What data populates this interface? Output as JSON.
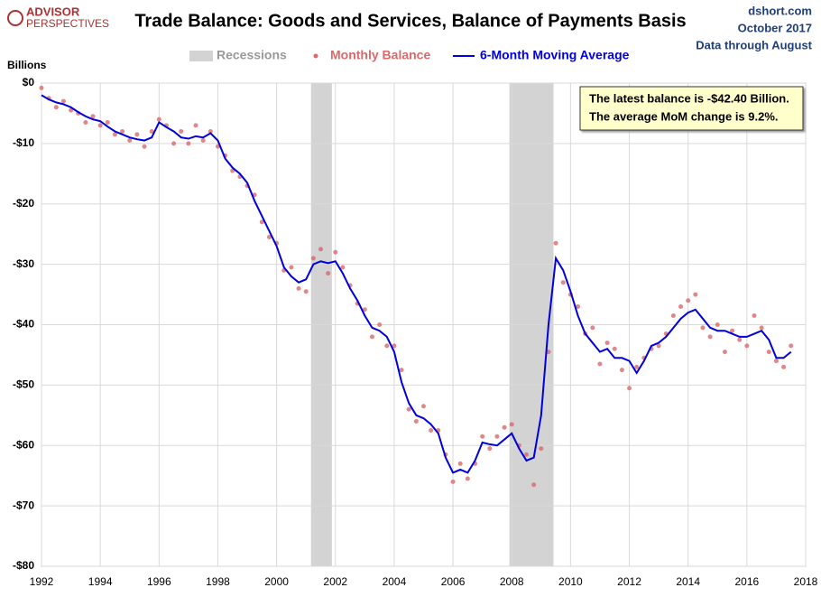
{
  "logo": [
    "ADVISOR",
    "PERSPECTIVES"
  ],
  "source": [
    "dshort.com",
    "October 2017",
    "Data through August"
  ],
  "chart_data": {
    "type": "line",
    "title": "Trade Balance: Goods and Services, Balance of Payments Basis",
    "y_label": "Billions",
    "recession_label": "Recessions",
    "recession_color": "#d3d3d3",
    "recessions": [
      [
        2001.17,
        2001.88
      ],
      [
        2007.92,
        2009.42
      ]
    ],
    "annotation": [
      "The latest balance is -$42.40  Billion.",
      "The average MoM change is 9.2%."
    ],
    "grid": true,
    "xlim": [
      1992,
      2018
    ],
    "xticks": [
      1992,
      1994,
      1996,
      1998,
      2000,
      2002,
      2004,
      2006,
      2008,
      2010,
      2012,
      2014,
      2016,
      2018
    ],
    "ylim": [
      -80,
      0
    ],
    "yticks": [
      {
        "value": 0,
        "label": "$0"
      },
      {
        "value": -10,
        "label": "-$10"
      },
      {
        "value": -20,
        "label": "-$20"
      },
      {
        "value": -30,
        "label": "-$30"
      },
      {
        "value": -40,
        "label": "-$40"
      },
      {
        "value": -50,
        "label": "-$50"
      },
      {
        "value": -60,
        "label": "-$60"
      },
      {
        "value": -70,
        "label": "-$70"
      },
      {
        "value": -80,
        "label": "-$80"
      }
    ],
    "x": [
      1992,
      1992.25,
      1992.5,
      1992.75,
      1993,
      1993.25,
      1993.5,
      1993.75,
      1994,
      1994.25,
      1994.5,
      1994.75,
      1995,
      1995.25,
      1995.5,
      1995.75,
      1996,
      1996.25,
      1996.5,
      1996.75,
      1997,
      1997.25,
      1997.5,
      1997.75,
      1998,
      1998.25,
      1998.5,
      1998.75,
      1999,
      1999.25,
      1999.5,
      1999.75,
      2000,
      2000.25,
      2000.5,
      2000.75,
      2001,
      2001.25,
      2001.5,
      2001.75,
      2002,
      2002.25,
      2002.5,
      2002.75,
      2003,
      2003.25,
      2003.5,
      2003.75,
      2004,
      2004.25,
      2004.5,
      2004.75,
      2005,
      2005.25,
      2005.5,
      2005.75,
      2006,
      2006.25,
      2006.5,
      2006.75,
      2007,
      2007.25,
      2007.5,
      2007.75,
      2008,
      2008.25,
      2008.5,
      2008.75,
      2009,
      2009.25,
      2009.5,
      2009.75,
      2010,
      2010.25,
      2010.5,
      2010.75,
      2011,
      2011.25,
      2011.5,
      2011.75,
      2012,
      2012.25,
      2012.5,
      2012.75,
      2013,
      2013.25,
      2013.5,
      2013.75,
      2014,
      2014.25,
      2014.5,
      2014.75,
      2015,
      2015.25,
      2015.5,
      2015.75,
      2016,
      2016.25,
      2016.5,
      2016.75,
      2017,
      2017.25,
      2017.5
    ],
    "series": [
      {
        "name": "Monthly Balance",
        "mode": "markers",
        "color": "#d9696b",
        "values": [
          -0.8,
          -2.5,
          -4.0,
          -3.0,
          -4.5,
          -5.0,
          -6.5,
          -5.5,
          -7.0,
          -6.5,
          -8.5,
          -8.0,
          -9.5,
          -8.5,
          -10.5,
          -8.0,
          -6.0,
          -7.0,
          -10.0,
          -8.0,
          -10.0,
          -7.0,
          -9.5,
          -8.0,
          -10.5,
          -12.0,
          -14.5,
          -15.5,
          -17.0,
          -18.5,
          -23.0,
          -25.5,
          -26.5,
          -31.0,
          -30.5,
          -34.0,
          -34.5,
          -29.0,
          -27.5,
          -31.5,
          -28.0,
          -30.5,
          -33.5,
          -36.5,
          -37.5,
          -42.0,
          -40.0,
          -43.5,
          -43.5,
          -47.5,
          -54.0,
          -56.0,
          -53.5,
          -57.5,
          -57.5,
          -61.5,
          -66.0,
          -63.0,
          -65.5,
          -63.0,
          -58.5,
          -60.5,
          -58.5,
          -57.0,
          -56.5,
          -60.0,
          -61.5,
          -66.5,
          -60.5,
          -44.5,
          -26.5,
          -33.0,
          -35.0,
          -37.0,
          -41.5,
          -40.5,
          -46.5,
          -43.0,
          -44.0,
          -47.5,
          -50.5,
          -47.0,
          -45.5,
          -44.0,
          -43.5,
          -41.5,
          -38.5,
          -37.0,
          -36.0,
          -35.0,
          -40.5,
          -42.0,
          -40.0,
          -44.5,
          -41.0,
          -42.5,
          -43.5,
          -38.5,
          -40.5,
          -44.5,
          -46.0,
          -47.0,
          -43.5
        ]
      },
      {
        "name": "6-Month Moving Average",
        "mode": "line",
        "color": "#0000dd",
        "values": [
          -2,
          -2.7,
          -3.2,
          -3.5,
          -4.0,
          -4.8,
          -5.5,
          -6.0,
          -6.3,
          -7.2,
          -8.0,
          -8.5,
          -9.0,
          -9.3,
          -9.5,
          -9.0,
          -6.5,
          -7.3,
          -8.0,
          -9.0,
          -9.2,
          -8.8,
          -9.0,
          -8.3,
          -9.5,
          -12.5,
          -14.0,
          -15.0,
          -16.5,
          -19.5,
          -22.0,
          -24.5,
          -27.0,
          -30.5,
          -32.0,
          -33.0,
          -32.5,
          -30.0,
          -29.5,
          -29.8,
          -29.5,
          -31.5,
          -34.0,
          -36.0,
          -38.5,
          -40.5,
          -41.0,
          -42.0,
          -44.5,
          -49.5,
          -53.0,
          -55.0,
          -55.5,
          -56.5,
          -58.0,
          -62.0,
          -64.5,
          -64.0,
          -64.5,
          -62.5,
          -59.5,
          -59.8,
          -60.0,
          -59.0,
          -58.0,
          -60.5,
          -62.5,
          -62.0,
          -55.0,
          -40.0,
          -29.0,
          -31.0,
          -34.5,
          -38.5,
          -41.5,
          -43.0,
          -44.5,
          -44.0,
          -45.5,
          -45.5,
          -46.0,
          -48.0,
          -46.0,
          -43.5,
          -43.0,
          -42.0,
          -40.5,
          -39.0,
          -38.0,
          -37.5,
          -39.0,
          -40.5,
          -41.0,
          -41.0,
          -41.5,
          -42.0,
          -42.0,
          -41.5,
          -41.0,
          -42.5,
          -45.5,
          -45.5,
          -44.5
        ]
      }
    ]
  }
}
